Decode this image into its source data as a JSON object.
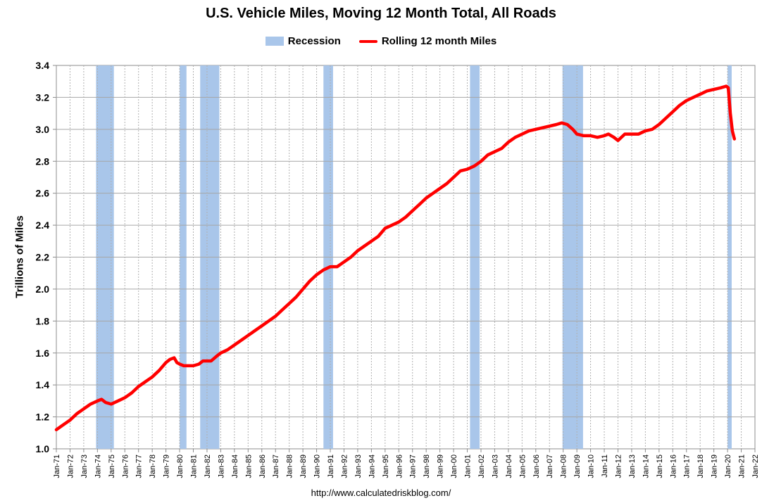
{
  "chart_data": {
    "type": "line",
    "title": "U.S. Vehicle Miles, Moving 12 Month Total, All Roads",
    "ylabel": "Trillions of Miles",
    "xlabel": "",
    "source": "http://www.calculatedriskblog.com/",
    "ylim": [
      1.0,
      3.4
    ],
    "yticks": [
      "1.0",
      "1.2",
      "1.4",
      "1.6",
      "1.8",
      "2.0",
      "2.2",
      "2.4",
      "2.6",
      "2.8",
      "3.0",
      "3.2",
      "3.4"
    ],
    "xlim": [
      1971.0,
      2022.0
    ],
    "xticks": [
      "Jan-71",
      "Jan-72",
      "Jan-73",
      "Jan-74",
      "Jan-75",
      "Jan-76",
      "Jan-77",
      "Jan-78",
      "Jan-79",
      "Jan-80",
      "Jan-81",
      "Jan-82",
      "Jan-83",
      "Jan-84",
      "Jan-85",
      "Jan-86",
      "Jan-87",
      "Jan-88",
      "Jan-89",
      "Jan-90",
      "Jan-91",
      "Jan-92",
      "Jan-93",
      "Jan-94",
      "Jan-95",
      "Jan-96",
      "Jan-97",
      "Jan-98",
      "Jan-99",
      "Jan-00",
      "Jan-01",
      "Jan-02",
      "Jan-03",
      "Jan-04",
      "Jan-05",
      "Jan-06",
      "Jan-07",
      "Jan-08",
      "Jan-09",
      "Jan-10",
      "Jan-11",
      "Jan-12",
      "Jan-13",
      "Jan-14",
      "Jan-15",
      "Jan-16",
      "Jan-17",
      "Jan-18",
      "Jan-19",
      "Jan-20",
      "Jan-21",
      "Jan-22"
    ],
    "grid": true,
    "legend_position": "top-center",
    "legend": [
      {
        "name": "Recession",
        "kind": "area",
        "color": "#a9c6ea"
      },
      {
        "name": "Rolling 12 month Miles",
        "kind": "line",
        "color": "#ff0000"
      }
    ],
    "recessions": [
      [
        1973.9,
        1975.2
      ],
      [
        1980.0,
        1980.5
      ],
      [
        1981.5,
        1982.9
      ],
      [
        1990.5,
        1991.2
      ],
      [
        2001.2,
        2001.9
      ],
      [
        2007.95,
        2009.45
      ],
      [
        2020.0,
        2020.3
      ]
    ],
    "series": [
      {
        "name": "Rolling 12 month Miles",
        "x": [
          1971.0,
          1971.5,
          1972.0,
          1972.5,
          1973.0,
          1973.5,
          1974.0,
          1974.3,
          1974.6,
          1975.0,
          1975.5,
          1976.0,
          1976.5,
          1977.0,
          1977.5,
          1978.0,
          1978.5,
          1979.0,
          1979.3,
          1979.6,
          1979.8,
          1980.0,
          1980.3,
          1980.7,
          1981.0,
          1981.4,
          1981.7,
          1982.0,
          1982.3,
          1982.7,
          1983.0,
          1983.5,
          1984.0,
          1984.5,
          1985.0,
          1985.5,
          1986.0,
          1986.5,
          1987.0,
          1987.5,
          1988.0,
          1988.5,
          1989.0,
          1989.5,
          1990.0,
          1990.5,
          1991.0,
          1991.5,
          1992.0,
          1992.5,
          1993.0,
          1993.5,
          1994.0,
          1994.5,
          1995.0,
          1995.5,
          1996.0,
          1996.5,
          1997.0,
          1997.5,
          1998.0,
          1998.5,
          1999.0,
          1999.5,
          2000.0,
          2000.5,
          2001.0,
          2001.5,
          2002.0,
          2002.5,
          2003.0,
          2003.5,
          2004.0,
          2004.5,
          2005.0,
          2005.5,
          2006.0,
          2006.5,
          2007.0,
          2007.5,
          2007.9,
          2008.3,
          2008.7,
          2009.0,
          2009.5,
          2010.0,
          2010.5,
          2011.0,
          2011.3,
          2011.7,
          2012.0,
          2012.5,
          2013.0,
          2013.5,
          2014.0,
          2014.5,
          2015.0,
          2015.5,
          2016.0,
          2016.5,
          2017.0,
          2017.5,
          2018.0,
          2018.5,
          2019.0,
          2019.5,
          2019.9,
          2020.05,
          2020.2,
          2020.35,
          2020.5
        ],
        "values": [
          1.12,
          1.15,
          1.18,
          1.22,
          1.25,
          1.28,
          1.3,
          1.31,
          1.29,
          1.28,
          1.3,
          1.32,
          1.35,
          1.39,
          1.42,
          1.45,
          1.49,
          1.54,
          1.56,
          1.57,
          1.54,
          1.53,
          1.52,
          1.52,
          1.52,
          1.53,
          1.55,
          1.55,
          1.55,
          1.58,
          1.6,
          1.62,
          1.65,
          1.68,
          1.71,
          1.74,
          1.77,
          1.8,
          1.83,
          1.87,
          1.91,
          1.95,
          2.0,
          2.05,
          2.09,
          2.12,
          2.14,
          2.14,
          2.17,
          2.2,
          2.24,
          2.27,
          2.3,
          2.33,
          2.38,
          2.4,
          2.42,
          2.45,
          2.49,
          2.53,
          2.57,
          2.6,
          2.63,
          2.66,
          2.7,
          2.74,
          2.75,
          2.77,
          2.8,
          2.84,
          2.86,
          2.88,
          2.92,
          2.95,
          2.97,
          2.99,
          3.0,
          3.01,
          3.02,
          3.03,
          3.04,
          3.03,
          3.0,
          2.97,
          2.96,
          2.96,
          2.95,
          2.96,
          2.97,
          2.95,
          2.93,
          2.97,
          2.97,
          2.97,
          2.99,
          3.0,
          3.03,
          3.07,
          3.11,
          3.15,
          3.18,
          3.2,
          3.22,
          3.24,
          3.25,
          3.26,
          3.27,
          3.26,
          3.1,
          2.99,
          2.94
        ]
      }
    ]
  }
}
